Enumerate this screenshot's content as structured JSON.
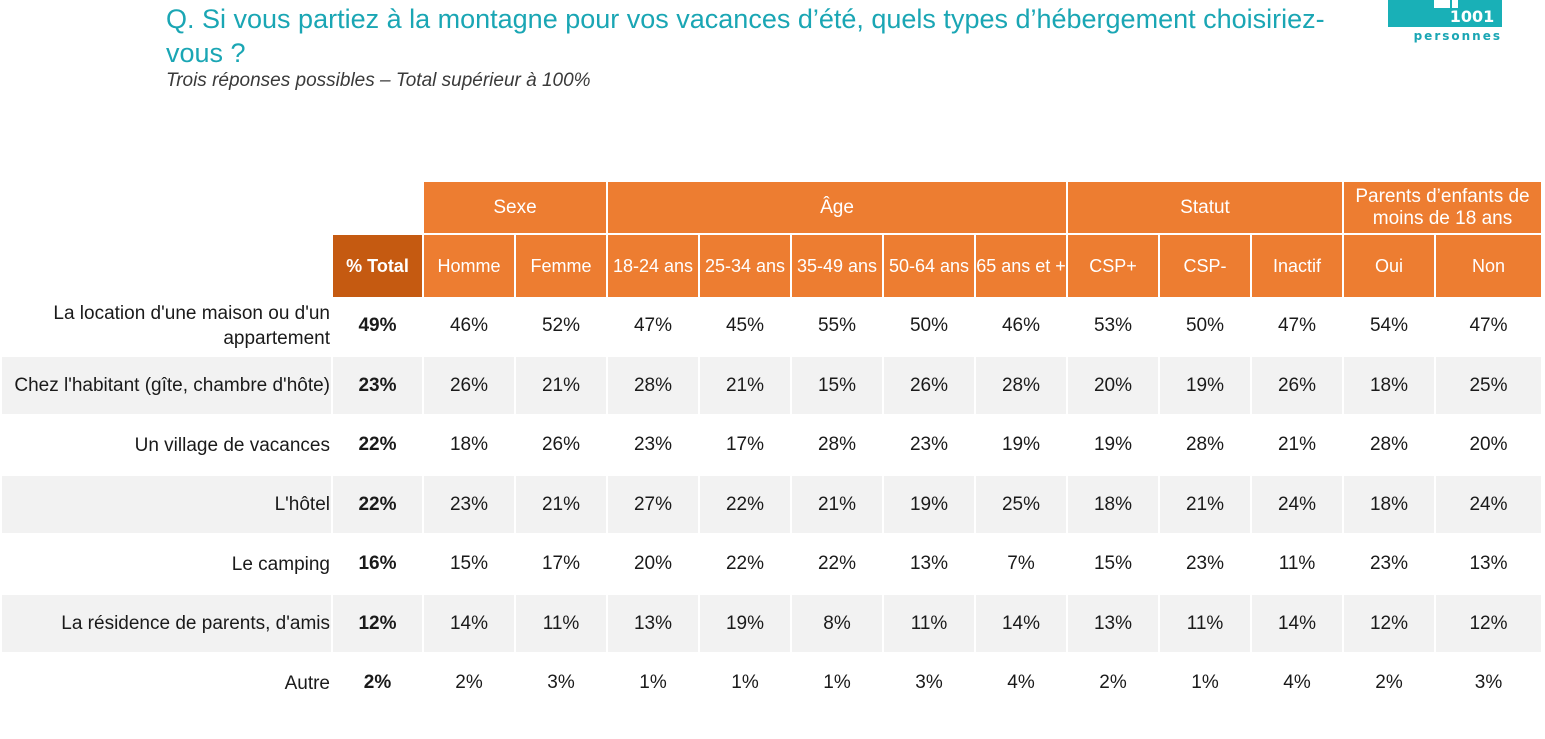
{
  "header": {
    "title": "Q. Si vous partiez à la montagne pour vos vacances d’été, quels types d’hébergement choisiriez-vous ?",
    "subtitle": "Trois réponses possibles – Total supérieur à 100%",
    "logo": {
      "number": "1001",
      "label": "personnes"
    }
  },
  "colors": {
    "teal": "#1aa6b4",
    "orange": "#ed7d31",
    "dark_orange": "#c55a11",
    "row_shade": "#f2f2f2"
  },
  "table": {
    "groups": [
      {
        "label": "Sexe"
      },
      {
        "label": "Âge"
      },
      {
        "label": "Statut"
      },
      {
        "label": "Parents d’enfants de moins de 18 ans"
      }
    ],
    "total_header": "% Total",
    "columns": [
      "Homme",
      "Femme",
      "18-24 ans",
      "25-34 ans",
      "35-49 ans",
      "50-64 ans",
      "65 ans et +",
      "CSP+",
      "CSP-",
      "Inactif",
      "Oui",
      "Non"
    ],
    "rows": [
      {
        "label": "La location d'une maison ou d'un appartement",
        "total": "49%",
        "values": [
          "46%",
          "52%",
          "47%",
          "45%",
          "55%",
          "50%",
          "46%",
          "53%",
          "50%",
          "47%",
          "54%",
          "47%"
        ]
      },
      {
        "label": "Chez l'habitant (gîte, chambre d'hôte)",
        "total": "23%",
        "values": [
          "26%",
          "21%",
          "28%",
          "21%",
          "15%",
          "26%",
          "28%",
          "20%",
          "19%",
          "26%",
          "18%",
          "25%"
        ]
      },
      {
        "label": "Un village de vacances",
        "total": "22%",
        "values": [
          "18%",
          "26%",
          "23%",
          "17%",
          "28%",
          "23%",
          "19%",
          "19%",
          "28%",
          "21%",
          "28%",
          "20%"
        ]
      },
      {
        "label": "L'hôtel",
        "total": "22%",
        "values": [
          "23%",
          "21%",
          "27%",
          "22%",
          "21%",
          "19%",
          "25%",
          "18%",
          "21%",
          "24%",
          "18%",
          "24%"
        ]
      },
      {
        "label": "Le camping",
        "total": "16%",
        "values": [
          "15%",
          "17%",
          "20%",
          "22%",
          "22%",
          "13%",
          "7%",
          "15%",
          "23%",
          "11%",
          "23%",
          "13%"
        ]
      },
      {
        "label": "La résidence de parents, d'amis",
        "total": "12%",
        "values": [
          "14%",
          "11%",
          "13%",
          "19%",
          "8%",
          "11%",
          "14%",
          "13%",
          "11%",
          "14%",
          "12%",
          "12%"
        ]
      },
      {
        "label": "Autre",
        "total": "2%",
        "values": [
          "2%",
          "3%",
          "1%",
          "1%",
          "1%",
          "3%",
          "4%",
          "2%",
          "1%",
          "4%",
          "2%",
          "3%"
        ]
      }
    ]
  }
}
